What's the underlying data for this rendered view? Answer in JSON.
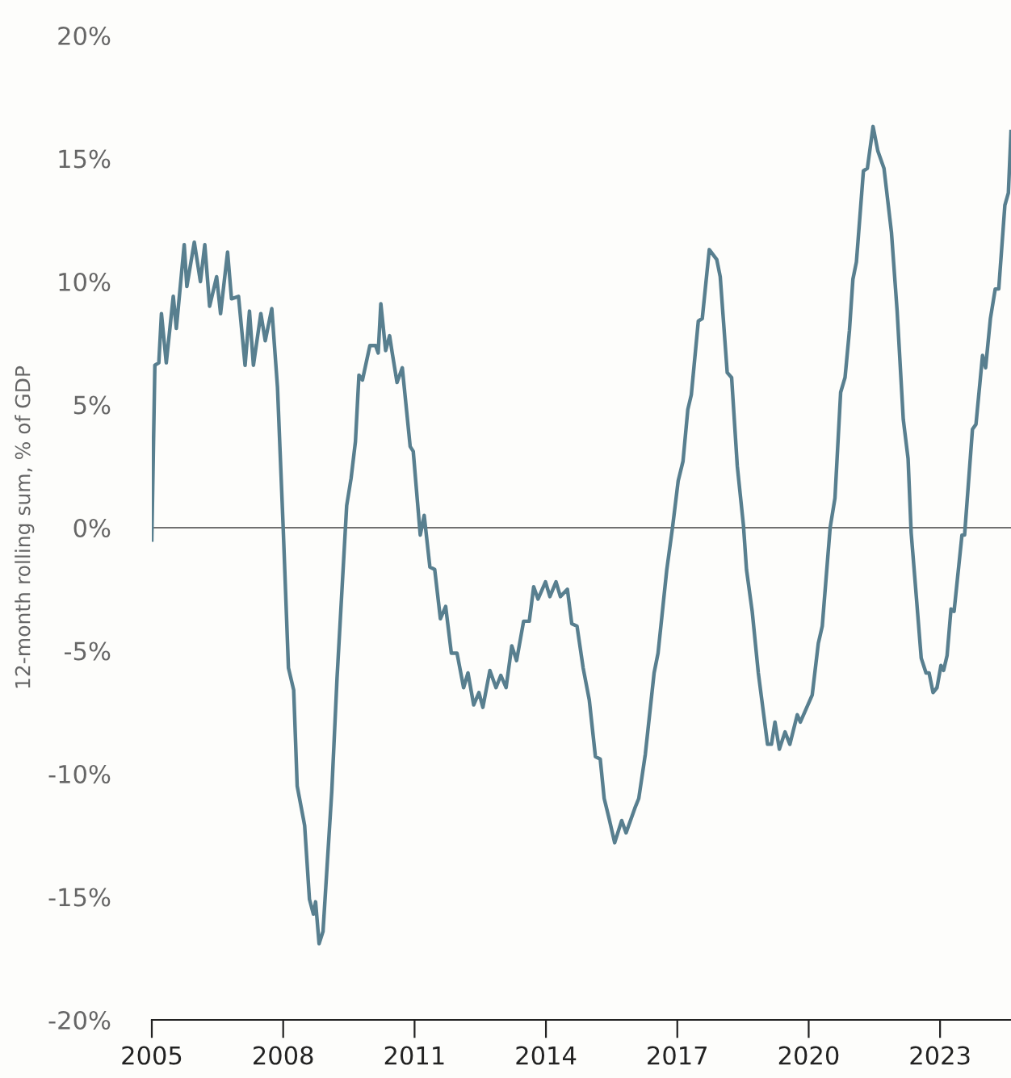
{
  "chart_data": {
    "type": "line",
    "ylabel": "12-month rolling sum, % of GDP",
    "series": [
      {
        "color": "#587f8f",
        "x": [
          2005.0,
          2005.07,
          2005.16,
          2005.22,
          2005.33,
          2005.49,
          2005.56,
          2005.74,
          2005.8,
          2005.97,
          2006.11,
          2006.21,
          2006.32,
          2006.48,
          2006.57,
          2006.73,
          2006.82,
          2006.98,
          2007.13,
          2007.23,
          2007.32,
          2007.49,
          2007.59,
          2007.74,
          2007.87,
          2008.0,
          2008.12,
          2008.24,
          2008.32,
          2008.49,
          2008.6,
          2008.69,
          2008.74,
          2008.82,
          2008.91,
          2009.11,
          2009.23,
          2009.45,
          2009.55,
          2009.65,
          2009.73,
          2009.81,
          2009.98,
          2010.11,
          2010.17,
          2010.23,
          2010.34,
          2010.43,
          2010.49,
          2010.6,
          2010.72,
          2010.9,
          2010.97,
          2011.13,
          2011.22,
          2011.35,
          2011.46,
          2011.59,
          2011.71,
          2011.84,
          2011.97,
          2012.12,
          2012.22,
          2012.35,
          2012.47,
          2012.56,
          2012.72,
          2012.86,
          2012.97,
          2013.09,
          2013.22,
          2013.33,
          2013.49,
          2013.62,
          2013.72,
          2013.82,
          2013.99,
          2014.09,
          2014.23,
          2014.33,
          2014.49,
          2014.59,
          2014.71,
          2014.85,
          2014.99,
          2015.13,
          2015.24,
          2015.33,
          2015.44,
          2015.57,
          2015.73,
          2015.83,
          2016.03,
          2016.12,
          2016.27,
          2016.47,
          2016.56,
          2016.76,
          2016.89,
          2017.02,
          2017.13,
          2017.24,
          2017.32,
          2017.48,
          2017.57,
          2017.73,
          2017.9,
          2017.98,
          2018.14,
          2018.24,
          2018.37,
          2018.51,
          2018.58,
          2018.71,
          2018.85,
          2019.06,
          2019.15,
          2019.23,
          2019.33,
          2019.46,
          2019.57,
          2019.74,
          2019.81,
          2020.08,
          2020.22,
          2020.31,
          2020.49,
          2020.6,
          2020.73,
          2020.83,
          2020.93,
          2021.01,
          2021.09,
          2021.25,
          2021.34,
          2021.47,
          2021.58,
          2021.72,
          2021.89,
          2022.02,
          2022.16,
          2022.27,
          2022.34,
          2022.44,
          2022.57,
          2022.68,
          2022.75,
          2022.84,
          2022.93,
          2023.02,
          2023.08,
          2023.16,
          2023.25,
          2023.32,
          2023.5,
          2023.56,
          2023.74,
          2023.82,
          2023.97,
          2024.04,
          2024.15,
          2024.26,
          2024.34,
          2024.48,
          2024.56,
          2024.62
        ],
        "values": [
          -0.5,
          6.6,
          6.7,
          8.7,
          6.7,
          9.4,
          8.1,
          11.5,
          9.8,
          11.6,
          10.0,
          11.5,
          9.0,
          10.2,
          8.7,
          11.2,
          9.3,
          9.4,
          6.6,
          8.8,
          6.6,
          8.7,
          7.6,
          8.9,
          5.7,
          0.0,
          -5.7,
          -6.6,
          -10.5,
          -12.1,
          -15.1,
          -15.7,
          -15.2,
          -16.9,
          -16.4,
          -10.7,
          -6.1,
          0.9,
          2.0,
          3.5,
          6.2,
          6.0,
          7.4,
          7.4,
          7.1,
          9.1,
          7.2,
          7.8,
          7.1,
          5.9,
          6.5,
          3.3,
          3.1,
          -0.3,
          0.5,
          -1.6,
          -1.7,
          -3.7,
          -3.2,
          -5.1,
          -5.1,
          -6.5,
          -5.9,
          -7.2,
          -6.7,
          -7.3,
          -5.8,
          -6.5,
          -6.0,
          -6.5,
          -4.8,
          -5.4,
          -3.8,
          -3.8,
          -2.4,
          -2.9,
          -2.2,
          -2.8,
          -2.2,
          -2.8,
          -2.5,
          -3.9,
          -4.0,
          -5.7,
          -7.0,
          -9.3,
          -9.4,
          -11.0,
          -11.8,
          -12.8,
          -11.9,
          -12.4,
          -11.4,
          -11.0,
          -9.2,
          -5.9,
          -5.1,
          -1.7,
          0.0,
          1.9,
          2.7,
          4.8,
          5.4,
          8.4,
          8.5,
          11.3,
          10.9,
          10.2,
          6.3,
          6.1,
          2.5,
          0.1,
          -1.7,
          -3.4,
          -5.9,
          -8.8,
          -8.8,
          -7.9,
          -9.0,
          -8.3,
          -8.8,
          -7.6,
          -7.9,
          -6.8,
          -4.7,
          -4.0,
          0.0,
          1.2,
          5.5,
          6.1,
          8.0,
          10.1,
          10.8,
          14.5,
          14.6,
          16.3,
          15.3,
          14.6,
          12.0,
          8.8,
          4.4,
          2.8,
          -0.2,
          -2.4,
          -5.3,
          -5.9,
          -5.9,
          -6.7,
          -6.5,
          -5.6,
          -5.8,
          -5.2,
          -3.3,
          -3.4,
          -0.3,
          -0.3,
          4.0,
          4.2,
          7.0,
          6.5,
          8.5,
          9.7,
          9.7,
          13.1,
          13.6,
          16.1
        ]
      }
    ],
    "xlim": [
      2005,
      2024.62
    ],
    "xticks": [
      2005,
      2008,
      2011,
      2014,
      2017,
      2020,
      2023
    ],
    "ylim": [
      -20,
      20
    ],
    "yticks": [
      {
        "value": -20,
        "label": "-20%"
      },
      {
        "value": -15,
        "label": "-15%"
      },
      {
        "value": -10,
        "label": "-10%"
      },
      {
        "value": -5,
        "label": "-5%"
      },
      {
        "value": 0,
        "label": "0%"
      },
      {
        "value": 5,
        "label": "5%"
      },
      {
        "value": 10,
        "label": "10%"
      },
      {
        "value": 15,
        "label": "15%"
      },
      {
        "value": 20,
        "label": "20%"
      }
    ],
    "ref_lines": [
      {
        "axis": "y",
        "value": 0,
        "color": "#707070"
      }
    ],
    "grid": false,
    "legend": false,
    "marker": "none",
    "line_style": "solid"
  }
}
